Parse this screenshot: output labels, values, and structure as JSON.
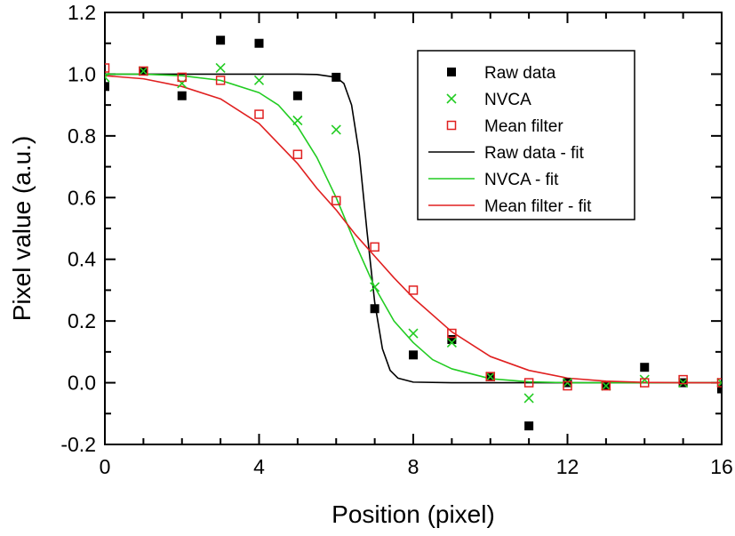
{
  "chart_data": {
    "type": "scatter",
    "xlabel": "Position (pixel)",
    "ylabel": "Pixel value (a.u.)",
    "xlim": [
      0,
      16
    ],
    "ylim": [
      -0.2,
      1.2
    ],
    "x_ticks": [
      0,
      4,
      8,
      12,
      16
    ],
    "y_ticks": [
      -0.2,
      0.0,
      0.2,
      0.4,
      0.6,
      0.8,
      1.0,
      1.2
    ],
    "y_tick_labels": [
      "-0.2",
      "0.0",
      "0.2",
      "0.4",
      "0.6",
      "0.8",
      "1.0",
      "1.2"
    ],
    "grid": false,
    "legend_position": "top-right",
    "series": [
      {
        "name": "Raw data",
        "kind": "points",
        "marker": "filled-square",
        "color": "#000000",
        "x": [
          0,
          1,
          2,
          3,
          4,
          5,
          6,
          7,
          8,
          9,
          10,
          11,
          12,
          13,
          14,
          15,
          16
        ],
        "y": [
          0.96,
          1.01,
          0.93,
          1.11,
          1.1,
          0.93,
          0.99,
          0.24,
          0.09,
          0.14,
          0.02,
          -0.14,
          0.0,
          -0.01,
          0.05,
          0.0,
          -0.02
        ]
      },
      {
        "name": "NVCA",
        "kind": "points",
        "marker": "cross",
        "color": "#22cc22",
        "x": [
          0,
          1,
          2,
          3,
          4,
          5,
          6,
          7,
          8,
          9,
          10,
          11,
          12,
          13,
          14,
          15,
          16
        ],
        "y": [
          0.99,
          1.01,
          0.97,
          1.02,
          0.98,
          0.85,
          0.82,
          0.31,
          0.16,
          0.13,
          0.02,
          -0.05,
          0.0,
          -0.01,
          0.01,
          0.0,
          0.0
        ]
      },
      {
        "name": "Mean filter",
        "kind": "points",
        "marker": "open-square",
        "color": "#e02020",
        "x": [
          0,
          1,
          2,
          3,
          4,
          5,
          6,
          7,
          8,
          9,
          10,
          11,
          12,
          13,
          14,
          15,
          16
        ],
        "y": [
          1.02,
          1.01,
          0.99,
          0.98,
          0.87,
          0.74,
          0.59,
          0.44,
          0.3,
          0.16,
          0.02,
          0.0,
          -0.01,
          -0.01,
          0.0,
          0.01,
          0.0
        ]
      },
      {
        "name": "Raw data - fit",
        "kind": "line",
        "color": "#000000",
        "x": [
          0,
          1,
          2,
          3,
          4,
          5,
          5.5,
          6,
          6.2,
          6.4,
          6.6,
          6.8,
          7.0,
          7.2,
          7.4,
          7.6,
          8,
          9,
          10,
          11,
          12,
          13,
          14,
          15,
          16
        ],
        "y": [
          1.0,
          1.0,
          1.0,
          1.0,
          1.0,
          1.0,
          0.999,
          0.99,
          0.97,
          0.9,
          0.74,
          0.49,
          0.26,
          0.11,
          0.04,
          0.015,
          0.002,
          0.0,
          0.0,
          0.0,
          0.0,
          0.0,
          0.0,
          0.0,
          0.0
        ]
      },
      {
        "name": "NVCA - fit",
        "kind": "line",
        "color": "#22cc22",
        "x": [
          0,
          1,
          2,
          3,
          4,
          4.5,
          5,
          5.5,
          6,
          6.5,
          7,
          7.5,
          8,
          8.5,
          9,
          10,
          11,
          12,
          13,
          14,
          15,
          16
        ],
        "y": [
          1.0,
          1.0,
          0.995,
          0.98,
          0.94,
          0.9,
          0.83,
          0.73,
          0.6,
          0.45,
          0.31,
          0.2,
          0.13,
          0.075,
          0.045,
          0.013,
          0.003,
          0.0,
          0.0,
          0.0,
          0.0,
          0.0
        ]
      },
      {
        "name": "Mean filter - fit",
        "kind": "line",
        "color": "#e02020",
        "x": [
          0,
          1,
          2,
          3,
          4,
          5,
          5.5,
          6,
          6.5,
          7,
          7.5,
          8,
          9,
          10,
          11,
          12,
          13,
          14,
          15,
          16
        ],
        "y": [
          0.995,
          0.985,
          0.96,
          0.92,
          0.84,
          0.71,
          0.63,
          0.56,
          0.48,
          0.41,
          0.34,
          0.275,
          0.165,
          0.085,
          0.04,
          0.015,
          0.005,
          0.001,
          0.0,
          0.0
        ]
      }
    ]
  }
}
